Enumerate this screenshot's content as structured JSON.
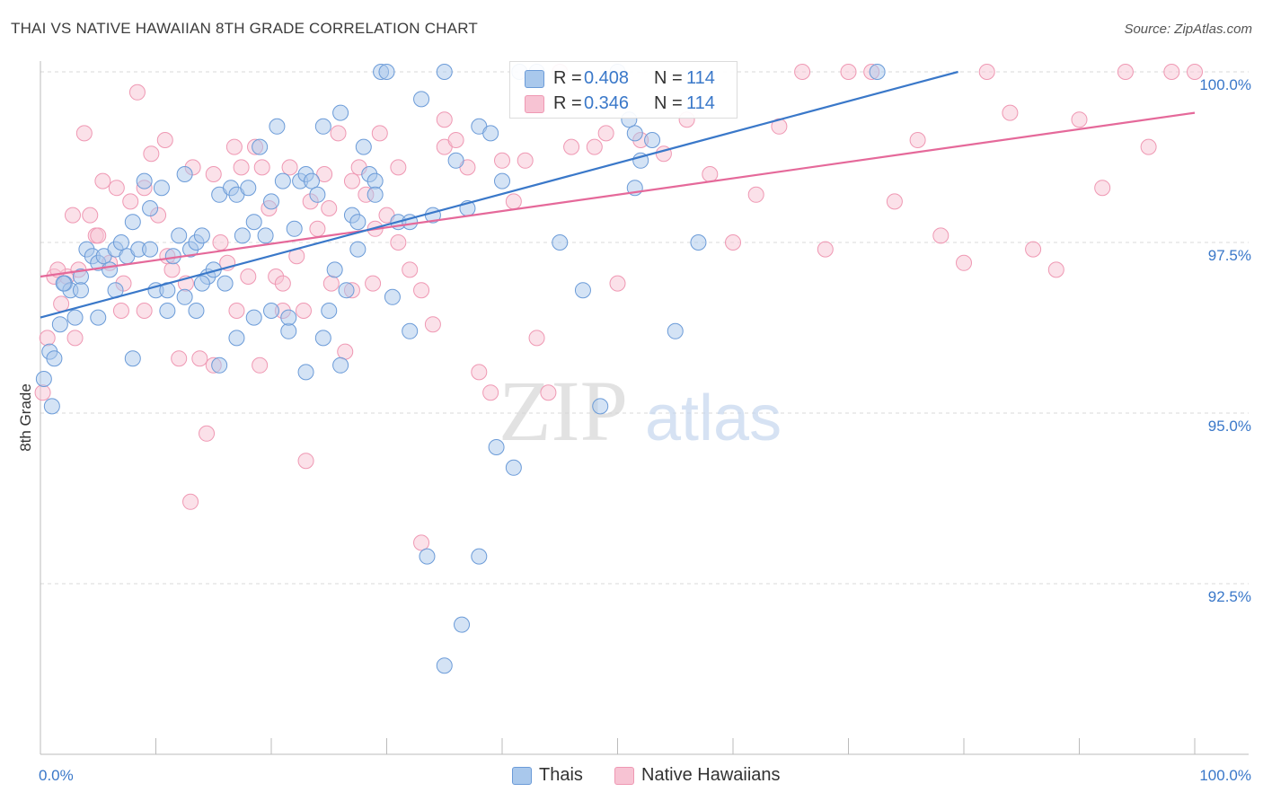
{
  "header": {
    "title": "THAI VS NATIVE HAWAIIAN 8TH GRADE CORRELATION CHART",
    "source": "Source: ZipAtlas.com"
  },
  "legend": {
    "r_label": "R =",
    "n_label": "N =",
    "series": [
      {
        "r": "0.408",
        "n": "114"
      },
      {
        "r": "0.346",
        "n": "114"
      }
    ]
  },
  "watermark": {
    "zip": "ZIP",
    "atlas": "atlas"
  },
  "colors": {
    "blue_fill": "#a9c8ec",
    "blue_stroke": "#6b9bd8",
    "blue_line": "#3a78c9",
    "pink_fill": "#f7c3d3",
    "pink_stroke": "#ef98b3",
    "pink_line": "#e5699a",
    "tick_label": "#3a78c9",
    "grid": "#d8d8d8"
  },
  "chart_data": {
    "type": "scatter",
    "title": "THAI VS NATIVE HAWAIIAN 8TH GRADE CORRELATION CHART",
    "xlabel": "",
    "ylabel": "8th Grade",
    "xlim": [
      0,
      100
    ],
    "ylim": [
      90.0,
      100.2
    ],
    "x_tick_labels": [
      "0.0%",
      "100.0%"
    ],
    "y_ticks": [
      92.5,
      95.0,
      97.5,
      100.0
    ],
    "y_tick_labels": [
      "92.5%",
      "95.0%",
      "97.5%",
      "100.0%"
    ],
    "grid": "horizontal dashed",
    "legend_placement": "top-center",
    "series": [
      {
        "name": "Thais",
        "r": 0.408,
        "n": 114,
        "trend": {
          "x": [
            0,
            79.5
          ],
          "y": [
            96.4,
            100.0
          ]
        },
        "x": [
          0.3,
          0.8,
          1.2,
          1.7,
          2.1,
          2.6,
          3.0,
          3.5,
          4.0,
          4.5,
          5.0,
          5.5,
          6.0,
          6.5,
          7.0,
          7.5,
          8.0,
          8.5,
          9.0,
          9.5,
          10.0,
          10.5,
          11.0,
          11.5,
          12.0,
          12.5,
          13.0,
          13.5,
          14.0,
          14.5,
          15.0,
          15.5,
          16.0,
          16.5,
          17.0,
          17.5,
          18.0,
          18.5,
          19.0,
          19.5,
          20.0,
          20.5,
          21.0,
          21.5,
          22.0,
          22.5,
          23.0,
          23.5,
          24.0,
          24.5,
          25.0,
          25.5,
          26.0,
          26.5,
          27.0,
          27.5,
          28.0,
          28.5,
          29.0,
          29.5,
          30.0,
          31.0,
          32.0,
          33.0,
          34.0,
          35.0,
          36.0,
          37.0,
          38.0,
          39.0,
          40.0,
          41.5,
          43.0,
          45.0,
          47.0,
          48.5,
          50.0,
          51.0,
          51.5,
          52.0,
          53.0,
          55.0,
          1.0,
          2.0,
          3.5,
          5.0,
          6.5,
          8.0,
          9.5,
          11.0,
          12.5,
          14.0,
          15.5,
          17.0,
          18.5,
          20.0,
          21.5,
          23.0,
          24.5,
          26.0,
          27.5,
          29.0,
          30.5,
          32.0,
          33.5,
          35.0,
          36.5,
          38.0,
          39.5,
          41.0,
          51.5,
          57.0,
          72.5,
          13.5
        ],
        "y": [
          95.5,
          95.9,
          95.8,
          96.3,
          96.9,
          96.8,
          96.4,
          97.0,
          97.4,
          97.3,
          97.2,
          97.3,
          97.1,
          97.4,
          97.5,
          97.3,
          97.8,
          97.4,
          98.4,
          98.0,
          96.8,
          98.3,
          96.5,
          97.3,
          97.6,
          98.5,
          97.4,
          97.5,
          97.6,
          97.0,
          97.1,
          98.2,
          96.9,
          98.3,
          98.2,
          97.6,
          98.3,
          97.8,
          98.9,
          97.6,
          98.1,
          99.2,
          98.4,
          96.2,
          97.7,
          98.4,
          98.5,
          98.4,
          98.2,
          99.2,
          96.5,
          97.1,
          99.4,
          96.8,
          97.9,
          97.8,
          98.9,
          98.5,
          98.4,
          100.0,
          100.0,
          97.8,
          97.8,
          99.6,
          97.9,
          100.0,
          98.7,
          98.0,
          99.2,
          99.1,
          98.4,
          100.0,
          100.0,
          97.5,
          96.8,
          95.1,
          100.0,
          99.3,
          99.1,
          98.7,
          99.0,
          96.2,
          95.1,
          96.9,
          96.8,
          96.4,
          96.8,
          95.8,
          97.4,
          96.8,
          96.7,
          96.9,
          95.7,
          96.1,
          96.4,
          96.5,
          96.4,
          95.6,
          96.1,
          95.7,
          97.4,
          98.2,
          96.7,
          96.2,
          92.9,
          91.3,
          91.9,
          92.9,
          94.5,
          94.2,
          98.3,
          97.5,
          100.0,
          96.5
        ]
      },
      {
        "name": "Native Hawaiians",
        "r": 0.346,
        "n": 114,
        "trend": {
          "x": [
            0,
            100
          ],
          "y": [
            97.0,
            99.4
          ]
        },
        "x": [
          0.2,
          0.6,
          1.2,
          1.8,
          2.3,
          2.8,
          3.3,
          3.8,
          4.3,
          4.8,
          5.4,
          6.0,
          6.6,
          7.2,
          7.8,
          8.4,
          9.0,
          9.6,
          10.2,
          10.8,
          11.4,
          12.0,
          12.6,
          13.2,
          13.8,
          14.4,
          15.0,
          15.6,
          16.2,
          16.8,
          17.4,
          18.0,
          18.6,
          19.2,
          19.8,
          20.4,
          21.0,
          21.6,
          22.2,
          22.8,
          23.4,
          24.0,
          24.6,
          25.2,
          25.8,
          26.4,
          27.0,
          27.6,
          28.2,
          28.8,
          29.4,
          30.0,
          31.0,
          32.0,
          33.0,
          34.0,
          35.0,
          36.0,
          37.0,
          38.0,
          39.0,
          40.0,
          41.0,
          42.0,
          43.0,
          44.0,
          45.0,
          46.0,
          48.0,
          49.0,
          50.0,
          52.0,
          54.0,
          56.0,
          58.0,
          60.0,
          62.0,
          64.0,
          66.0,
          68.0,
          70.0,
          72.0,
          74.0,
          76.0,
          78.0,
          80.0,
          82.0,
          84.0,
          86.0,
          88.0,
          90.0,
          92.0,
          94.0,
          96.0,
          98.0,
          100.0,
          1.5,
          3.0,
          5.0,
          7.0,
          9.0,
          11.0,
          13.0,
          15.0,
          17.0,
          19.0,
          21.0,
          23.0,
          25.0,
          27.0,
          29.0,
          31.0,
          33.0,
          35.0
        ],
        "y": [
          95.3,
          96.1,
          97.0,
          96.6,
          97.0,
          97.9,
          97.1,
          99.1,
          97.9,
          97.6,
          98.4,
          97.2,
          98.3,
          96.9,
          98.1,
          99.7,
          96.5,
          98.8,
          97.9,
          99.0,
          97.1,
          95.8,
          96.9,
          98.6,
          95.8,
          94.7,
          98.5,
          97.5,
          97.2,
          98.9,
          98.6,
          97.0,
          98.9,
          98.6,
          98.0,
          97.0,
          96.5,
          98.6,
          97.3,
          96.5,
          98.1,
          97.7,
          98.5,
          96.9,
          99.1,
          95.9,
          98.4,
          98.6,
          98.2,
          96.9,
          99.1,
          97.9,
          97.5,
          97.1,
          96.8,
          96.3,
          98.9,
          99.0,
          98.6,
          95.6,
          95.3,
          98.7,
          98.1,
          98.7,
          96.1,
          95.3,
          100.0,
          98.9,
          98.9,
          99.1,
          96.9,
          99.0,
          98.8,
          99.3,
          98.5,
          97.5,
          98.2,
          99.2,
          100.0,
          97.4,
          100.0,
          100.0,
          98.1,
          99.0,
          97.6,
          97.2,
          100.0,
          99.4,
          97.4,
          97.1,
          99.3,
          98.3,
          100.0,
          98.9,
          100.0,
          100.0,
          97.1,
          96.1,
          97.6,
          96.5,
          98.3,
          97.3,
          93.7,
          95.7,
          96.5,
          95.7,
          96.9,
          94.3,
          98.0,
          96.8,
          97.7,
          98.6,
          93.1,
          99.3
        ]
      }
    ]
  }
}
